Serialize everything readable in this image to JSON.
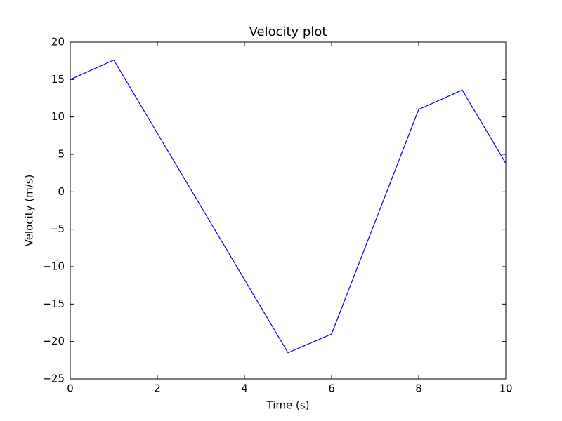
{
  "chart_data": {
    "type": "line",
    "title": "Velocity plot",
    "x_label": "Time (s)",
    "y_label": "Velocity (m/s)",
    "x": [
      0,
      1,
      5,
      6,
      8,
      9,
      10
    ],
    "series": [
      {
        "name": "Velocity",
        "color": "#0000ff",
        "values": [
          15,
          17.6,
          -21.5,
          -19,
          11,
          13.6,
          3.8
        ]
      }
    ],
    "xlim": [
      0,
      10
    ],
    "xticks": [
      0,
      2,
      4,
      6,
      8,
      10
    ],
    "ylim": [
      -25,
      20
    ],
    "yticks": [
      {
        "value": -25,
        "label": "−25"
      },
      {
        "value": -20,
        "label": "−20"
      },
      {
        "value": -15,
        "label": "−15"
      },
      {
        "value": -10,
        "label": "−10"
      },
      {
        "value": -5,
        "label": "−5"
      },
      0,
      5,
      10,
      15,
      20
    ],
    "grid": false
  }
}
